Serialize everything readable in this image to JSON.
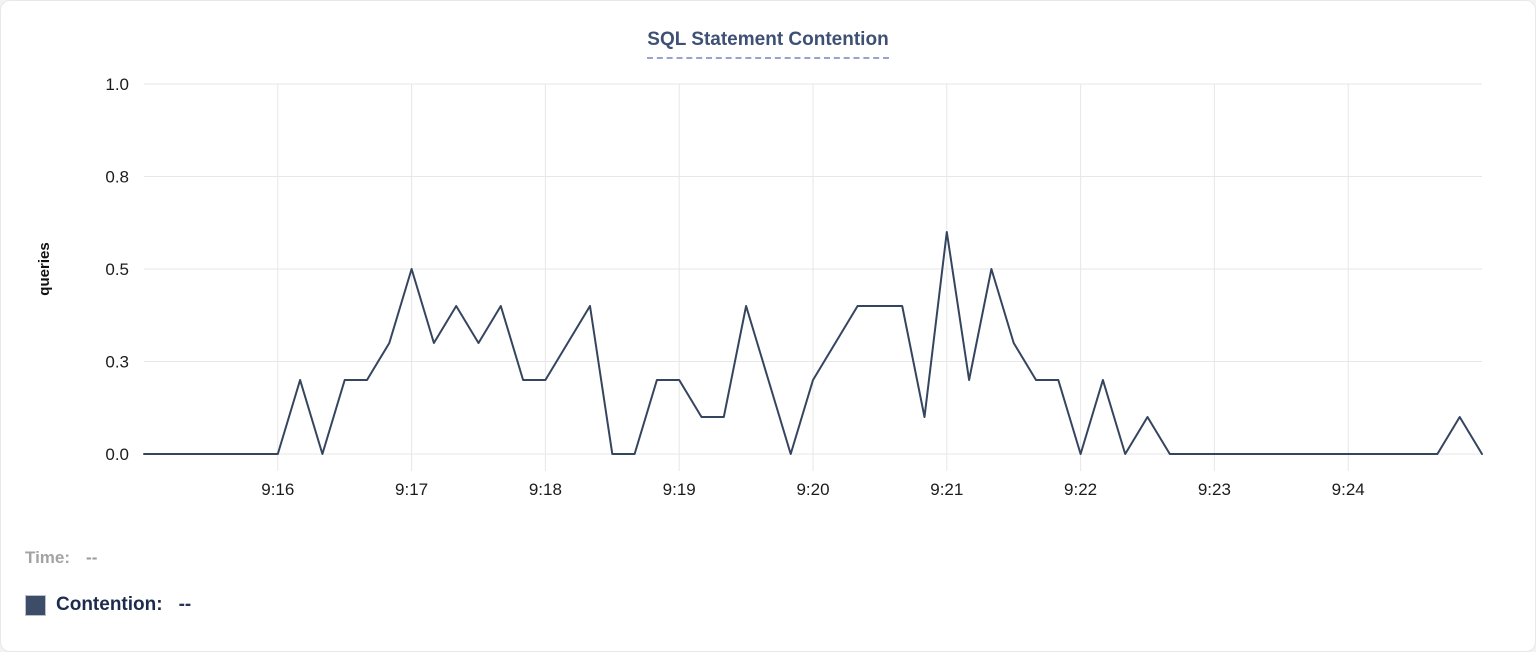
{
  "chart_data": {
    "type": "line",
    "title": "SQL Statement Contention",
    "xlabel": "",
    "ylabel": "queries",
    "ylim": [
      0,
      1
    ],
    "grid": true,
    "legend_position": "bottom-left",
    "y_tick_values": [
      0,
      0.25,
      0.5,
      0.75,
      1
    ],
    "y_tick_labels": [
      "0.0",
      "0.3",
      "0.5",
      "0.8",
      "1.0"
    ],
    "x_tick_labels": [
      "9:16",
      "9:17",
      "9:18",
      "9:19",
      "9:20",
      "9:21",
      "9:22",
      "9:23",
      "9:24"
    ],
    "x_range": [
      "9:15:00",
      "9:25:00"
    ],
    "x_interval_seconds": 10,
    "series": [
      {
        "name": "Contention",
        "unit": "queries",
        "color": "#35455f",
        "x": [
          "9:15:00",
          "9:15:10",
          "9:15:20",
          "9:15:30",
          "9:15:40",
          "9:15:50",
          "9:16:00",
          "9:16:10",
          "9:16:20",
          "9:16:30",
          "9:16:40",
          "9:16:50",
          "9:17:00",
          "9:17:10",
          "9:17:20",
          "9:17:30",
          "9:17:40",
          "9:17:50",
          "9:18:00",
          "9:18:10",
          "9:18:20",
          "9:18:30",
          "9:18:40",
          "9:18:50",
          "9:19:00",
          "9:19:10",
          "9:19:20",
          "9:19:30",
          "9:19:40",
          "9:19:50",
          "9:20:00",
          "9:20:10",
          "9:20:20",
          "9:20:30",
          "9:20:40",
          "9:20:50",
          "9:21:00",
          "9:21:10",
          "9:21:20",
          "9:21:30",
          "9:21:40",
          "9:21:50",
          "9:22:00",
          "9:22:10",
          "9:22:20",
          "9:22:30",
          "9:22:40",
          "9:22:50",
          "9:23:00",
          "9:23:10",
          "9:23:20",
          "9:23:30",
          "9:23:40",
          "9:23:50",
          "9:24:00",
          "9:24:10",
          "9:24:20",
          "9:24:30",
          "9:24:40",
          "9:24:50",
          "9:25:00"
        ],
        "values": [
          0,
          0,
          0,
          0,
          0,
          0,
          0,
          0.2,
          0,
          0.2,
          0.2,
          0.3,
          0.5,
          0.3,
          0.4,
          0.3,
          0.4,
          0.2,
          0.2,
          0.3,
          0.4,
          0,
          0,
          0.2,
          0.2,
          0.1,
          0.1,
          0.4,
          0.2,
          0,
          0.2,
          0.3,
          0.4,
          0.4,
          0.4,
          0.1,
          0.6,
          0.2,
          0.5,
          0.3,
          0.2,
          0.2,
          0,
          0.2,
          0,
          0.1,
          0,
          0,
          0,
          0,
          0,
          0,
          0,
          0,
          0,
          0,
          0,
          0,
          0,
          0.1,
          0
        ]
      }
    ]
  },
  "legend": {
    "time_label": "Time:",
    "time_value": "--",
    "contention_label": "Contention:",
    "contention_value": "--"
  },
  "colors": {
    "series_line": "#35455f",
    "legend_swatch": "#3d4d68",
    "title_text": "#3e5074",
    "title_underline": "#9aa3d0",
    "grid_line": "#e7e7e7",
    "axis_tick_text": "#1c1c1c",
    "time_label_text": "#a3a3a3",
    "contention_label_text": "#1d2c4e",
    "card_background": "#ffffff",
    "card_border": "#e8e8e8"
  }
}
